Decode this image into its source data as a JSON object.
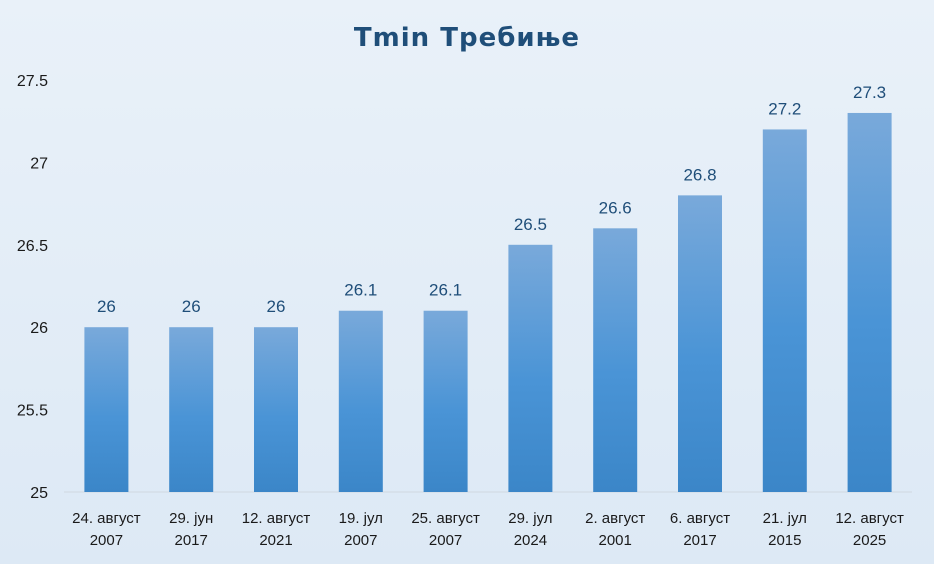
{
  "chart_data": {
    "type": "bar",
    "title": "Tmin Требиње",
    "categories": [
      [
        "24. август",
        "2007"
      ],
      [
        "29. јун",
        "2017"
      ],
      [
        "12. август",
        "2021"
      ],
      [
        "19. јул",
        "2007"
      ],
      [
        "25. август",
        "2007"
      ],
      [
        "29. јул",
        "2024"
      ],
      [
        "2. август",
        "2001"
      ],
      [
        "6. август",
        "2017"
      ],
      [
        "21. јул",
        "2015"
      ],
      [
        "12. август",
        "2025"
      ]
    ],
    "values": [
      26,
      26,
      26,
      26.1,
      26.1,
      26.5,
      26.6,
      26.8,
      27.2,
      27.3
    ],
    "xlabel": "",
    "ylabel": "",
    "ylim": [
      25,
      27.5
    ],
    "yticks": [
      25,
      25.5,
      26,
      26.5,
      27,
      27.5
    ],
    "grid": false,
    "legend": "none",
    "data_labels": true,
    "colors": {
      "bar_top": "#79a9da",
      "bar_bottom": "#3b86c8",
      "title": "#1f4e79",
      "label": "#1f4e79"
    }
  }
}
